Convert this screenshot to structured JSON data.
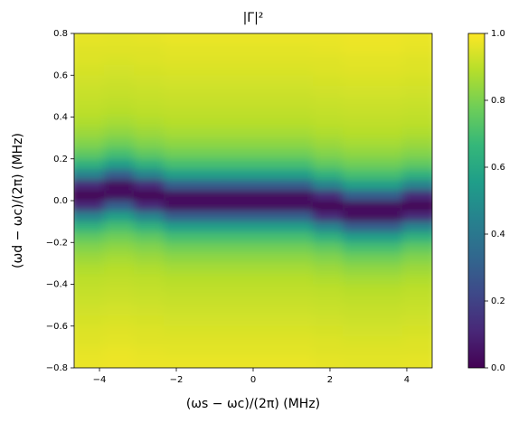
{
  "chart_data": {
    "type": "heatmap",
    "title": "|Γ|²",
    "xlabel": "(ωs − ωc)/(2π) (MHz)",
    "ylabel": "(ωd − ωc)/(2π) (MHz)",
    "xlim": [
      -4.66,
      4.66
    ],
    "ylim": [
      -0.8,
      0.8
    ],
    "xticks": [
      {
        "value": -4,
        "label": "−4"
      },
      {
        "value": -2,
        "label": "−2"
      },
      0,
      2,
      4
    ],
    "yticks": [
      {
        "value": -0.8,
        "label": "−0.8"
      },
      {
        "value": -0.6,
        "label": "−0.6"
      },
      {
        "value": -0.4,
        "label": "−0.4"
      },
      {
        "value": -0.2,
        "label": "−0.2"
      },
      {
        "value": 0,
        "label": "0.0"
      },
      {
        "value": 0.2,
        "label": "0.2"
      },
      {
        "value": 0.4,
        "label": "0.4"
      },
      {
        "value": 0.6,
        "label": "0.6"
      },
      {
        "value": 0.8,
        "label": "0.8"
      }
    ],
    "clim": [
      0,
      1
    ],
    "cticks": [
      {
        "value": 0,
        "label": "0.0"
      },
      {
        "value": 0.2,
        "label": "0.2"
      },
      {
        "value": 0.4,
        "label": "0.4"
      },
      {
        "value": 0.6,
        "label": "0.6"
      },
      {
        "value": 0.8,
        "label": "0.8"
      },
      {
        "value": 1,
        "label": "1.0"
      }
    ],
    "colormap": "viridis",
    "x": [
      -4.272,
      -3.495,
      -2.718,
      -1.942,
      -1.165,
      -0.388,
      0.388,
      1.165,
      1.942,
      2.718,
      3.495,
      4.272
    ],
    "y": [
      0.775,
      0.725,
      0.675,
      0.625,
      0.575,
      0.525,
      0.475,
      0.425,
      0.375,
      0.325,
      0.275,
      0.225,
      0.175,
      0.125,
      0.075,
      0.025,
      -0.025,
      -0.075,
      -0.125,
      -0.175,
      -0.225,
      -0.275,
      -0.325,
      -0.375,
      -0.425,
      -0.475,
      -0.525,
      -0.575,
      -0.625,
      -0.675,
      -0.725,
      -0.775
    ],
    "z": [
      [
        0.965,
        0.96,
        0.965,
        0.97,
        0.97,
        0.97,
        0.97,
        0.97,
        0.97,
        0.975,
        0.975,
        0.97
      ],
      [
        0.955,
        0.955,
        0.955,
        0.96,
        0.96,
        0.96,
        0.96,
        0.96,
        0.965,
        0.97,
        0.97,
        0.965
      ],
      [
        0.95,
        0.945,
        0.95,
        0.955,
        0.955,
        0.955,
        0.955,
        0.955,
        0.955,
        0.96,
        0.96,
        0.955
      ],
      [
        0.94,
        0.935,
        0.94,
        0.945,
        0.945,
        0.945,
        0.945,
        0.945,
        0.95,
        0.955,
        0.955,
        0.95
      ],
      [
        0.93,
        0.925,
        0.93,
        0.935,
        0.935,
        0.935,
        0.935,
        0.935,
        0.94,
        0.945,
        0.945,
        0.94
      ],
      [
        0.92,
        0.915,
        0.92,
        0.925,
        0.925,
        0.925,
        0.925,
        0.925,
        0.93,
        0.935,
        0.935,
        0.93
      ],
      [
        0.91,
        0.905,
        0.91,
        0.915,
        0.915,
        0.915,
        0.915,
        0.915,
        0.92,
        0.925,
        0.925,
        0.92
      ],
      [
        0.9,
        0.89,
        0.9,
        0.905,
        0.905,
        0.905,
        0.905,
        0.905,
        0.91,
        0.915,
        0.915,
        0.91
      ],
      [
        0.88,
        0.865,
        0.88,
        0.89,
        0.89,
        0.89,
        0.89,
        0.89,
        0.9,
        0.905,
        0.905,
        0.9
      ],
      [
        0.85,
        0.83,
        0.85,
        0.865,
        0.865,
        0.865,
        0.865,
        0.865,
        0.88,
        0.89,
        0.89,
        0.88
      ],
      [
        0.81,
        0.78,
        0.81,
        0.83,
        0.83,
        0.83,
        0.83,
        0.83,
        0.85,
        0.865,
        0.865,
        0.85
      ],
      [
        0.75,
        0.7,
        0.75,
        0.78,
        0.78,
        0.78,
        0.78,
        0.78,
        0.81,
        0.83,
        0.83,
        0.81
      ],
      [
        0.64,
        0.56,
        0.64,
        0.7,
        0.7,
        0.7,
        0.7,
        0.7,
        0.75,
        0.78,
        0.78,
        0.75
      ],
      [
        0.45,
        0.3,
        0.45,
        0.56,
        0.56,
        0.56,
        0.56,
        0.56,
        0.64,
        0.7,
        0.7,
        0.64
      ],
      [
        0.12,
        0.03,
        0.12,
        0.3,
        0.3,
        0.3,
        0.3,
        0.3,
        0.45,
        0.56,
        0.56,
        0.45
      ],
      [
        0,
        0.03,
        0,
        0.03,
        0.03,
        0.03,
        0.03,
        0.03,
        0.12,
        0.3,
        0.3,
        0.12
      ],
      [
        0.12,
        0.3,
        0.12,
        0.03,
        0.03,
        0.03,
        0.03,
        0.03,
        0,
        0.03,
        0.03,
        0
      ],
      [
        0.45,
        0.56,
        0.45,
        0.3,
        0.3,
        0.3,
        0.3,
        0.3,
        0.12,
        0.03,
        0.03,
        0.12
      ],
      [
        0.64,
        0.7,
        0.64,
        0.56,
        0.56,
        0.56,
        0.56,
        0.56,
        0.45,
        0.3,
        0.3,
        0.45
      ],
      [
        0.75,
        0.78,
        0.75,
        0.7,
        0.7,
        0.7,
        0.7,
        0.7,
        0.64,
        0.56,
        0.56,
        0.64
      ],
      [
        0.81,
        0.83,
        0.81,
        0.78,
        0.78,
        0.78,
        0.78,
        0.78,
        0.75,
        0.7,
        0.7,
        0.75
      ],
      [
        0.85,
        0.865,
        0.85,
        0.83,
        0.83,
        0.83,
        0.83,
        0.83,
        0.81,
        0.78,
        0.78,
        0.81
      ],
      [
        0.88,
        0.89,
        0.88,
        0.865,
        0.865,
        0.865,
        0.865,
        0.865,
        0.85,
        0.83,
        0.83,
        0.85
      ],
      [
        0.9,
        0.905,
        0.9,
        0.89,
        0.89,
        0.89,
        0.89,
        0.89,
        0.88,
        0.865,
        0.865,
        0.88
      ],
      [
        0.91,
        0.915,
        0.91,
        0.905,
        0.905,
        0.905,
        0.905,
        0.905,
        0.9,
        0.89,
        0.89,
        0.9
      ],
      [
        0.92,
        0.925,
        0.92,
        0.915,
        0.915,
        0.915,
        0.915,
        0.915,
        0.91,
        0.905,
        0.905,
        0.91
      ],
      [
        0.93,
        0.935,
        0.93,
        0.925,
        0.925,
        0.925,
        0.925,
        0.925,
        0.92,
        0.915,
        0.915,
        0.92
      ],
      [
        0.94,
        0.945,
        0.94,
        0.935,
        0.935,
        0.935,
        0.935,
        0.935,
        0.93,
        0.925,
        0.925,
        0.93
      ],
      [
        0.95,
        0.955,
        0.95,
        0.945,
        0.945,
        0.945,
        0.945,
        0.945,
        0.94,
        0.935,
        0.935,
        0.94
      ],
      [
        0.955,
        0.96,
        0.955,
        0.955,
        0.955,
        0.955,
        0.955,
        0.955,
        0.95,
        0.945,
        0.945,
        0.95
      ],
      [
        0.965,
        0.97,
        0.965,
        0.96,
        0.96,
        0.96,
        0.96,
        0.96,
        0.955,
        0.955,
        0.955,
        0.955
      ],
      [
        0.97,
        0.975,
        0.97,
        0.97,
        0.97,
        0.97,
        0.97,
        0.97,
        0.965,
        0.96,
        0.96,
        0.965
      ]
    ]
  }
}
